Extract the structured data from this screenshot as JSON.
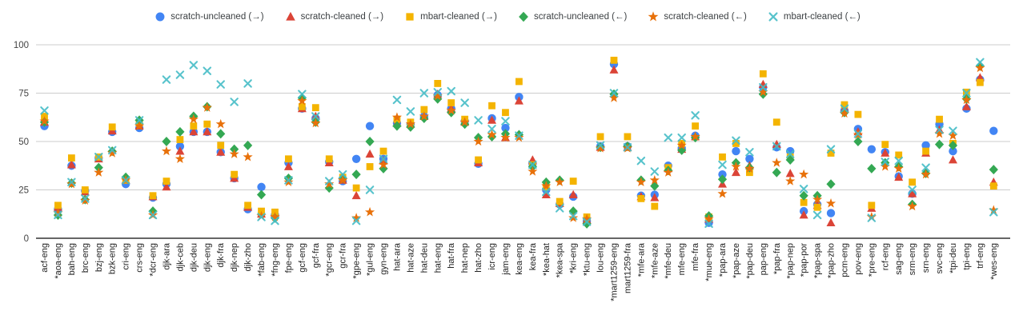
{
  "chart_data": {
    "type": "scatter",
    "title": "",
    "legend_position": "top",
    "grid": true,
    "y_axis": {
      "min": 0,
      "max": 100,
      "ticks": [
        0,
        25,
        50,
        75,
        100
      ]
    },
    "categories": [
      "acf-eng",
      "*aoa-eng",
      "bah-eng",
      "brc-eng",
      "bzj-eng",
      "bzk-eng",
      "cri-eng",
      "crs-eng",
      "*dcr-eng",
      "djk-ara",
      "djk-ceb",
      "djk-deu",
      "djk-eng",
      "djk-fra",
      "djk-nep",
      "djk-zho",
      "*fab-eng",
      "*fng-eng",
      "fpe-eng",
      "gcf-eng",
      "gcf-fra",
      "*gcr-eng",
      "gcr-fra",
      "*gpe-eng",
      "*gul-eng",
      "gyn-eng",
      "hat-ara",
      "hat-aze",
      "hat-deu",
      "hat-eng",
      "hat-fra",
      "hat-nep",
      "hat-zho",
      "icr-eng",
      "jam-eng",
      "kea-eng",
      "kea-fra",
      "*kea-hat",
      "*kea-spa",
      "*kri-eng",
      "*ktu-eng",
      "lou-eng",
      "*mart1259-eng",
      "mart1259-fra",
      "*mfe-ara",
      "*mfe-aze",
      "*mfe-deu",
      "mfe-eng",
      "mfe-fra",
      "*mue-eng",
      "*pap-ara",
      "*pap-aze",
      "*pap-deu",
      "pap-eng",
      "*pap-fra",
      "*pap-nep",
      "*pap-por",
      "*pap-spa",
      "*pap-zho",
      "pcm-eng",
      "pov-eng",
      "*pre-eng",
      "rcf-eng",
      "sag-eng",
      "srm-eng",
      "srn-eng",
      "svc-eng",
      "*tpi-deu",
      "tpi-eng",
      "trf-eng",
      "*wes-eng"
    ],
    "series": [
      {
        "name": "scratch-uncleaned (→)",
        "marker": "circle",
        "color": "#4285F4",
        "values": [
          58,
          15,
          37.5,
          24.5,
          41.5,
          55,
          28,
          57,
          21,
          28,
          47.5,
          55,
          55,
          44.5,
          31,
          15,
          26.5,
          12,
          39,
          67,
          62,
          39.5,
          29.5,
          41,
          58,
          41,
          59.5,
          59,
          63,
          74,
          67,
          60.5,
          38.5,
          62,
          57,
          73,
          38.5,
          25,
          17.5,
          21.5,
          9,
          47.5,
          90,
          47.5,
          22,
          22.5,
          37.5,
          46.5,
          53,
          8,
          33,
          45,
          41,
          78,
          47,
          45,
          14,
          17.5,
          13,
          66,
          56.5,
          46,
          44.5,
          32,
          23,
          48,
          59,
          45,
          67,
          82,
          55.5
        ]
      },
      {
        "name": "scratch-cleaned (→)",
        "marker": "triangle",
        "color": "#DB4437",
        "values": [
          60,
          16,
          38,
          24,
          41,
          55.5,
          30,
          58,
          21.5,
          26.5,
          45,
          55,
          55,
          44.5,
          31,
          16,
          12.5,
          13,
          37,
          67,
          63,
          39,
          30,
          22,
          43.5,
          40,
          59.5,
          59,
          63,
          74.5,
          67,
          60,
          39,
          61,
          52,
          71,
          40.5,
          22.5,
          18,
          22.5,
          9.5,
          47,
          87,
          47,
          21.5,
          21,
          36,
          46,
          52.5,
          10,
          28,
          34,
          37.5,
          79.5,
          48.5,
          33.5,
          12,
          17,
          8,
          67,
          55,
          15.5,
          44,
          31.5,
          23,
          44,
          56,
          40.5,
          68,
          83,
          29
        ]
      },
      {
        "name": "mbart-cleaned (→)",
        "marker": "square",
        "color": "#F4B400",
        "values": [
          63,
          17,
          41.5,
          25,
          42,
          57.5,
          30,
          59.5,
          22,
          29.5,
          51,
          58,
          59,
          48,
          33,
          17,
          14,
          13.5,
          41,
          68,
          67.5,
          41,
          31.5,
          26,
          37,
          45,
          61.5,
          60,
          66.5,
          80,
          70,
          61.5,
          40.5,
          68.5,
          65,
          81,
          38,
          26.5,
          19,
          29.5,
          11,
          52.5,
          92,
          52.5,
          20.5,
          16.5,
          36.5,
          49,
          58,
          11,
          42,
          49,
          34,
          85,
          60,
          42,
          18.5,
          16,
          44,
          69,
          64,
          17,
          48.5,
          43,
          29,
          45,
          61.5,
          49,
          75.5,
          80.5,
          27
        ]
      },
      {
        "name": "scratch-uncleaned (←)",
        "marker": "diamond",
        "color": "#34A853",
        "values": [
          60,
          12,
          28.5,
          20,
          36.5,
          45,
          31.5,
          61,
          14,
          50,
          55,
          63,
          68,
          54,
          46,
          48,
          22.5,
          10.5,
          31,
          72.5,
          60,
          26,
          31,
          33,
          50,
          36,
          58,
          57.5,
          62,
          72,
          65,
          59,
          52,
          52.5,
          54,
          53.5,
          37,
          29,
          30,
          14,
          7.5,
          47,
          74.5,
          47.5,
          30,
          27,
          35,
          45.5,
          52,
          11.5,
          30.5,
          39,
          36.5,
          74.5,
          34,
          40.5,
          22,
          22,
          28,
          65,
          50,
          36,
          39,
          37,
          17.5,
          33.5,
          48.5,
          48,
          72,
          89,
          35.5
        ]
      },
      {
        "name": "scratch-cleaned (←)",
        "marker": "star",
        "color": "#E8710A",
        "values": [
          60.5,
          13,
          28,
          19.5,
          34,
          44,
          30,
          58,
          12,
          45,
          41,
          61.5,
          67.5,
          59,
          43.5,
          42,
          11.5,
          11,
          29,
          71,
          59.5,
          28,
          30,
          10.5,
          13.5,
          38,
          62.5,
          59,
          63,
          73.5,
          66,
          60,
          50,
          53.5,
          52,
          52,
          34.5,
          27,
          29,
          10.5,
          10,
          46.5,
          72.5,
          46.5,
          29,
          30,
          34,
          48,
          52.5,
          10,
          23,
          37,
          36,
          75.5,
          39,
          29.5,
          33,
          20,
          18,
          64.5,
          53.5,
          11,
          37,
          36,
          16.5,
          33,
          54,
          53,
          71.5,
          88,
          14.5
        ]
      },
      {
        "name": "mbart-cleaned (←)",
        "marker": "x",
        "color": "#46BDC6",
        "values": [
          66,
          12,
          29,
          20.5,
          42,
          45.5,
          30,
          61,
          12,
          82,
          84.5,
          89.5,
          86.5,
          79.5,
          70.5,
          80,
          11,
          9,
          30,
          74.5,
          63,
          29.5,
          33,
          9,
          25,
          41,
          71.5,
          65.5,
          75,
          75.5,
          76,
          70,
          61,
          56.5,
          60.5,
          53,
          38,
          24,
          15.5,
          11.5,
          8.5,
          48,
          75,
          47,
          40,
          34.5,
          52,
          52,
          63.5,
          7.5,
          38,
          50.5,
          44.5,
          78,
          47.5,
          43.5,
          25.5,
          12,
          46,
          67,
          54,
          10.5,
          39.5,
          40,
          25,
          36.5,
          56,
          55.5,
          75,
          91,
          13.5
        ]
      }
    ]
  },
  "colors": {
    "gridline": "#cccccc",
    "axis": "#333333",
    "tick_label": "#444444",
    "category_label": "#222222",
    "legend_text": "#3c4043"
  }
}
